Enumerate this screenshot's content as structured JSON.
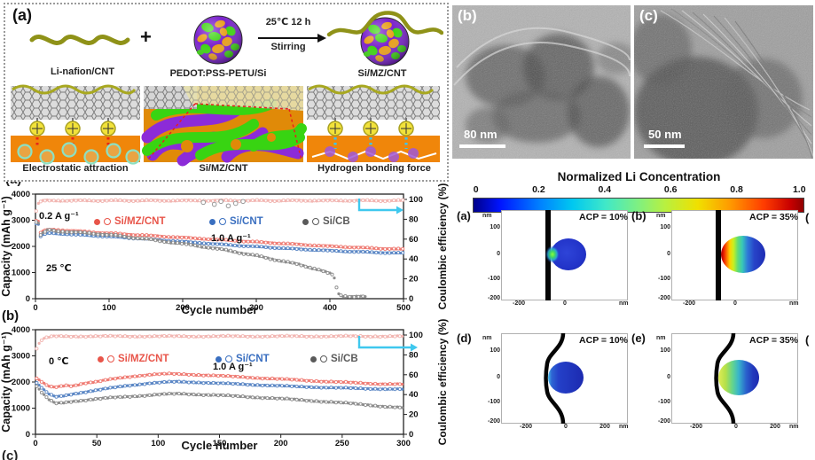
{
  "figure": {
    "schematic": {
      "label": "(a)",
      "reactant1": "Li-nafion/CNT",
      "plus": "+",
      "reactant2": "PEDOT:PSS-PETU/Si",
      "arrow_top": "25℃ 12 h",
      "arrow_bottom": "Stirring",
      "product": "Si/MZ/CNT",
      "panel_labels": [
        "Electrostatic attraction",
        "Si/MZ/CNT",
        "Hydrogen bonding force"
      ],
      "colors": {
        "nafion_chain": "#8f9218",
        "sphere_base": "#7a22cc",
        "sphere_patch_green": "#3ed414",
        "sphere_patch_orange": "#e8a01e",
        "matrix_orange": "#f0860a"
      }
    },
    "tem": {
      "b": {
        "label": "(b)",
        "scale_bar": "80 nm"
      },
      "c": {
        "label": "(c)",
        "scale_bar": "50 nm"
      }
    },
    "chart_panel_labels": {
      "a": "(a)",
      "b": "(b)",
      "c": "(c)"
    },
    "sim": {
      "title": "Normalized Li Concentration",
      "colorbar_ticks": [
        "0",
        "0.2",
        "0.4",
        "0.6",
        "0.8",
        "1.0"
      ],
      "unit_label": "nm",
      "ytick_labels": [
        "100",
        "0",
        "-100",
        "-200"
      ],
      "xtick_labels_top": [
        "-200",
        "0"
      ],
      "xtick_labels_bottom": [
        "-200",
        "0",
        "200"
      ],
      "panels": [
        {
          "label": "(a)",
          "acp": "ACP = 10%"
        },
        {
          "label": "(b)",
          "acp": "ACP = 35%"
        },
        {
          "label": "(d)",
          "acp": "ACP = 10%"
        },
        {
          "label": "(e)",
          "acp": "ACP = 35%"
        }
      ],
      "cut_panel_fragment": "("
    }
  },
  "chart_data": [
    {
      "id": "cycling_25C",
      "type": "scatter",
      "xlabel": "Cycle number",
      "ylabel": "Capacity (mAh g⁻¹)",
      "y2label": "Coulombic efficiency (%)",
      "xlim": [
        0,
        500
      ],
      "ylim": [
        0,
        4000
      ],
      "y2lim": [
        0,
        100
      ],
      "xticks": [
        0,
        100,
        200,
        300,
        400,
        500
      ],
      "yticks": [
        0,
        1000,
        2000,
        3000,
        4000
      ],
      "y2ticks": [
        0,
        20,
        40,
        60,
        80,
        100
      ],
      "step": 3,
      "legend": [
        {
          "label": "Si/MZ/CNT",
          "color": "#e8554a"
        },
        {
          "label": "Si/CNT",
          "color": "#3a6fc0"
        },
        {
          "label": "Si/CB",
          "color": "#5a5a5a"
        }
      ],
      "annotations": [
        {
          "text": "0.2 A g⁻¹",
          "x": 44,
          "y": 33
        },
        {
          "text": "1.0 A g⁻¹",
          "x": 238,
          "y": 58
        },
        {
          "text": "25 ℃",
          "x": 52,
          "y": 92
        }
      ],
      "series": [
        {
          "name": "Si/MZ/CNT",
          "color": "#ef7c74",
          "wiggle": 20,
          "points": [
            [
              1,
              2980
            ],
            [
              4,
              2960
            ],
            [
              7,
              2520
            ],
            [
              12,
              2610
            ],
            [
              20,
              2650
            ],
            [
              35,
              2620
            ],
            [
              60,
              2580
            ],
            [
              90,
              2520
            ],
            [
              120,
              2470
            ],
            [
              150,
              2420
            ],
            [
              180,
              2370
            ],
            [
              210,
              2320
            ],
            [
              240,
              2270
            ],
            [
              270,
              2220
            ],
            [
              300,
              2170
            ],
            [
              330,
              2120
            ],
            [
              360,
              2070
            ],
            [
              390,
              2020
            ],
            [
              420,
              1980
            ],
            [
              460,
              1930
            ],
            [
              500,
              1890
            ]
          ]
        },
        {
          "name": "Si/CNT",
          "color": "#5b87c5",
          "wiggle": 18,
          "points": [
            [
              1,
              2870
            ],
            [
              4,
              2840
            ],
            [
              7,
              2380
            ],
            [
              12,
              2470
            ],
            [
              20,
              2510
            ],
            [
              35,
              2480
            ],
            [
              60,
              2440
            ],
            [
              90,
              2390
            ],
            [
              120,
              2340
            ],
            [
              150,
              2280
            ],
            [
              180,
              2220
            ],
            [
              210,
              2160
            ],
            [
              240,
              2100
            ],
            [
              270,
              2040
            ],
            [
              300,
              1990
            ],
            [
              330,
              1940
            ],
            [
              360,
              1890
            ],
            [
              390,
              1850
            ],
            [
              420,
              1810
            ],
            [
              460,
              1770
            ],
            [
              500,
              1740
            ]
          ]
        },
        {
          "name": "Si/CB",
          "color": "#8d8d8d",
          "wiggle": 32,
          "points": [
            [
              1,
              2920
            ],
            [
              4,
              2880
            ],
            [
              7,
              2430
            ],
            [
              12,
              2540
            ],
            [
              18,
              2640
            ],
            [
              30,
              2580
            ],
            [
              60,
              2530
            ],
            [
              90,
              2470
            ],
            [
              120,
              2380
            ],
            [
              150,
              2280
            ],
            [
              180,
              2170
            ],
            [
              210,
              2060
            ],
            [
              240,
              1940
            ],
            [
              270,
              1800
            ],
            [
              300,
              1640
            ],
            [
              330,
              1470
            ],
            [
              360,
              1290
            ],
            [
              385,
              1110
            ],
            [
              405,
              900
            ],
            [
              409,
              420
            ],
            [
              413,
              130
            ],
            [
              425,
              90
            ],
            [
              450,
              70
            ]
          ]
        },
        {
          "name": "Coulombic efficiency",
          "axis": "y2",
          "color": "#f2b6b2",
          "wiggle": 0.7,
          "points": [
            [
              1,
              88
            ],
            [
              3,
              95
            ],
            [
              6,
              97.5
            ],
            [
              12,
              98.8
            ],
            [
              500,
              98.8
            ]
          ]
        },
        {
          "name": "CE outliers Si/CB",
          "axis": "y2",
          "color": "#9a9a9a",
          "sparse": true,
          "points": [
            [
              228,
              97
            ],
            [
              243,
              95
            ],
            [
              252,
              98
            ],
            [
              262,
              93.5
            ],
            [
              272,
              96
            ],
            [
              282,
              98
            ]
          ]
        }
      ]
    },
    {
      "id": "cycling_0C",
      "type": "scatter",
      "xlabel": "Cycle number",
      "ylabel": "Capacity (mAh g⁻¹)",
      "y2label": "Coulombic efficiency (%)",
      "xlim": [
        0,
        300
      ],
      "ylim": [
        0,
        4000
      ],
      "y2lim": [
        0,
        100
      ],
      "xticks": [
        0,
        50,
        100,
        150,
        200,
        250,
        300
      ],
      "yticks": [
        0,
        1000,
        2000,
        3000,
        4000
      ],
      "y2ticks": [
        0,
        20,
        40,
        60,
        80,
        100
      ],
      "step": 2,
      "legend": [
        {
          "label": "Si/MZ/CNT",
          "color": "#e8554a"
        },
        {
          "label": "Si/CNT",
          "color": "#3a6fc0"
        },
        {
          "label": "Si/CB",
          "color": "#5a5a5a"
        }
      ],
      "annotations": [
        {
          "text": "0 ℃",
          "x": 55,
          "y": 44
        },
        {
          "text": "1.0 A g⁻¹",
          "x": 240,
          "y": 50
        }
      ],
      "series": [
        {
          "name": "Si/MZ/CNT",
          "color": "#ef7c74",
          "wiggle": 22,
          "points": [
            [
              1,
              2130
            ],
            [
              5,
              2010
            ],
            [
              9,
              1870
            ],
            [
              14,
              1790
            ],
            [
              18,
              1810
            ],
            [
              25,
              1870
            ],
            [
              30,
              1850
            ],
            [
              40,
              1960
            ],
            [
              50,
              2010
            ],
            [
              60,
              2090
            ],
            [
              70,
              2160
            ],
            [
              80,
              2220
            ],
            [
              90,
              2270
            ],
            [
              100,
              2300
            ],
            [
              110,
              2310
            ],
            [
              125,
              2290
            ],
            [
              140,
              2260
            ],
            [
              160,
              2210
            ],
            [
              180,
              2160
            ],
            [
              200,
              2110
            ],
            [
              220,
              2060
            ],
            [
              240,
              2010
            ],
            [
              260,
              1970
            ],
            [
              280,
              1930
            ],
            [
              300,
              1910
            ]
          ]
        },
        {
          "name": "Si/CNT",
          "color": "#5b87c5",
          "wiggle": 20,
          "points": [
            [
              1,
              1960
            ],
            [
              5,
              1780
            ],
            [
              10,
              1560
            ],
            [
              16,
              1430
            ],
            [
              22,
              1460
            ],
            [
              30,
              1540
            ],
            [
              45,
              1650
            ],
            [
              60,
              1760
            ],
            [
              75,
              1860
            ],
            [
              90,
              1940
            ],
            [
              105,
              1990
            ],
            [
              115,
              2010
            ],
            [
              130,
              1990
            ],
            [
              150,
              1950
            ],
            [
              170,
              1910
            ],
            [
              190,
              1870
            ],
            [
              210,
              1830
            ],
            [
              230,
              1800
            ],
            [
              250,
              1770
            ],
            [
              275,
              1740
            ],
            [
              300,
              1720
            ]
          ]
        },
        {
          "name": "Si/CB",
          "color": "#8d8d8d",
          "wiggle": 26,
          "points": [
            [
              1,
              1830
            ],
            [
              5,
              1600
            ],
            [
              10,
              1350
            ],
            [
              16,
              1180
            ],
            [
              22,
              1200
            ],
            [
              30,
              1260
            ],
            [
              45,
              1330
            ],
            [
              60,
              1390
            ],
            [
              75,
              1440
            ],
            [
              90,
              1490
            ],
            [
              105,
              1530
            ],
            [
              118,
              1550
            ],
            [
              130,
              1530
            ],
            [
              150,
              1490
            ],
            [
              170,
              1440
            ],
            [
              190,
              1390
            ],
            [
              210,
              1330
            ],
            [
              230,
              1270
            ],
            [
              250,
              1200
            ],
            [
              270,
              1130
            ],
            [
              285,
              1060
            ],
            [
              300,
              1010
            ]
          ]
        },
        {
          "name": "Coulombic efficiency",
          "axis": "y2",
          "color": "#f2b6b2",
          "wiggle": 0.7,
          "points": [
            [
              1,
              86
            ],
            [
              4,
              94
            ],
            [
              8,
              97
            ],
            [
              15,
              98.7
            ],
            [
              300,
              98.7
            ]
          ]
        }
      ]
    },
    {
      "id": "li_concentration_simulation",
      "type": "heatmap",
      "title": "Normalized Li Concentration",
      "colorbar_range": [
        0,
        1
      ],
      "colorbar_ticks": [
        0,
        0.2,
        0.4,
        0.6,
        0.8,
        1.0
      ],
      "panels": [
        {
          "label": "(a)",
          "acp_percent": 10,
          "geometry": "straight CNT wall",
          "x_range_nm": [
            -300,
            150
          ],
          "y_range_nm": [
            -230,
            150
          ],
          "peak_concentration_at_contact": 0.5
        },
        {
          "label": "(b)",
          "acp_percent": 35,
          "geometry": "straight CNT wall",
          "x_range_nm": [
            -300,
            150
          ],
          "y_range_nm": [
            -230,
            150
          ],
          "peak_concentration_at_contact": 1.0
        },
        {
          "label": "(d)",
          "acp_percent": 10,
          "geometry": "curved CNT wall",
          "x_range_nm": [
            -300,
            250
          ],
          "y_range_nm": [
            -230,
            170
          ],
          "peak_concentration_at_contact": 0.25
        },
        {
          "label": "(e)",
          "acp_percent": 35,
          "geometry": "curved CNT wall",
          "x_range_nm": [
            -300,
            250
          ],
          "y_range_nm": [
            -230,
            170
          ],
          "peak_concentration_at_contact": 0.6
        }
      ]
    }
  ]
}
